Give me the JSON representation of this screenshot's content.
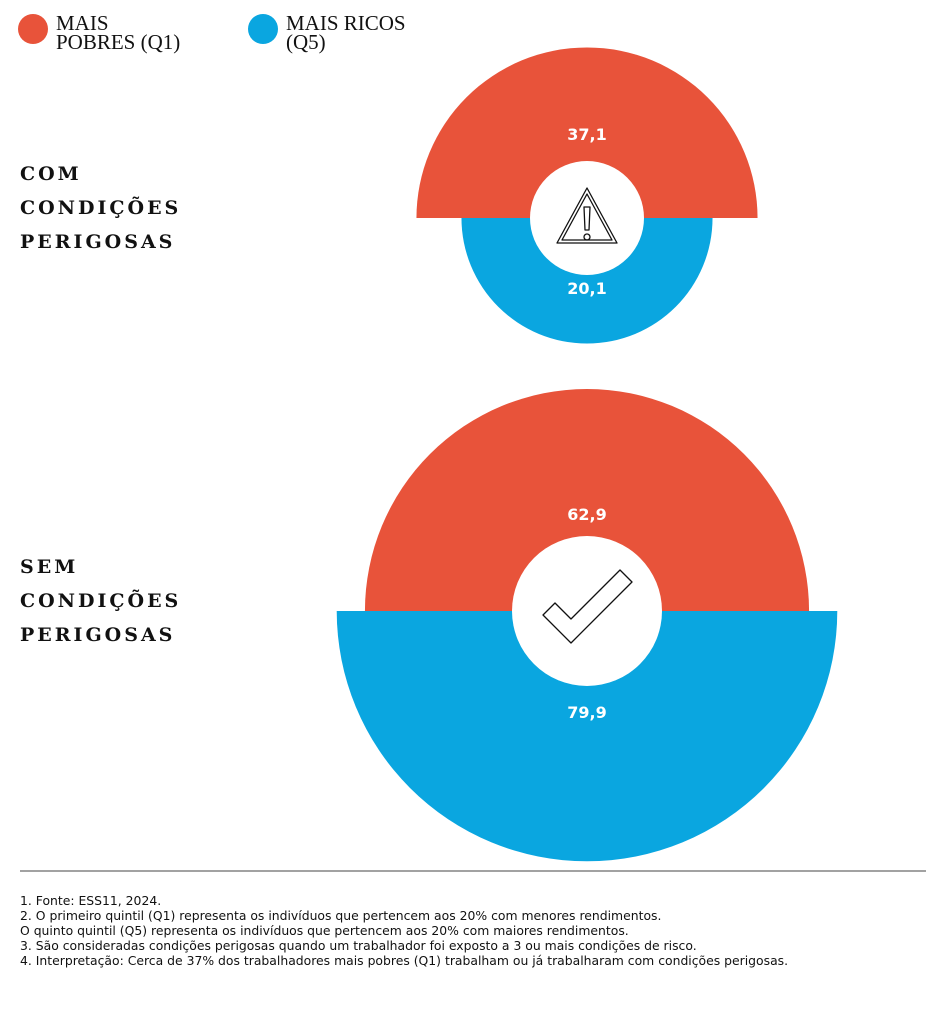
{
  "chart_data": {
    "type": "semicircle",
    "categories": [
      "COM CONDIÇÕES PERIGOSAS",
      "SEM CONDIÇÕES PERIGOSAS"
    ],
    "series": [
      {
        "name": "MAIS POBRES (Q1)",
        "color": "#e8533a",
        "values": [
          37.1,
          62.9
        ],
        "value_labels": [
          "37,1",
          "62,9"
        ]
      },
      {
        "name": "MAIS RICOS (Q5)",
        "color": "#0aa6e0",
        "values": [
          20.1,
          79.9
        ],
        "value_labels": [
          "20,1",
          "79,9"
        ]
      }
    ],
    "notes": [
      "1. Fonte: ESS11, 2024.",
      "2. O primeiro quintil (Q1) representa os indivíduos que pertencem aos 20% com menores rendimentos.",
      "O quinto quintil (Q5) representa os indivíduos que pertencem aos 20% com maiores rendimentos.",
      "3. São consideradas condições perigosas quando um trabalhador foi exposto a 3 ou mais condições de risco.",
      "4. Interpretação: Cerca de 37% dos trabalhadores mais pobres (Q1) trabalham ou já trabalharam com condições perigosas."
    ]
  }
}
